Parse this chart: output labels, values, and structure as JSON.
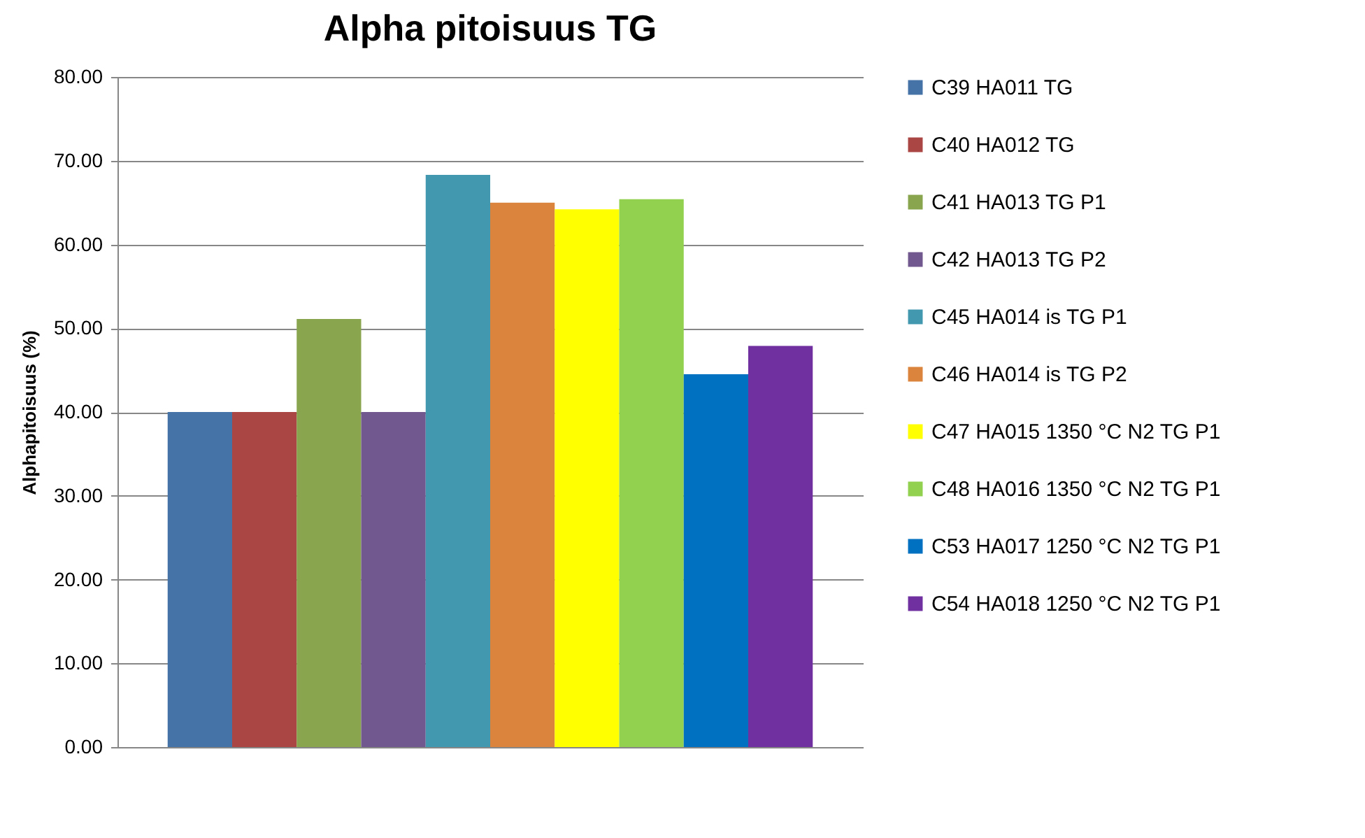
{
  "chart_data": {
    "type": "bar",
    "title": "Alpha pitoisuus TG",
    "ylabel": "Alphapitoisuus (%)",
    "categories": [
      null
    ],
    "series": [
      {
        "name": "C39 HA011 TG",
        "color": "#4572a7",
        "values": [
          40.0
        ]
      },
      {
        "name": "C40 HA012 TG",
        "color": "#aa4643",
        "values": [
          40.0
        ]
      },
      {
        "name": "C41 HA013 TG P1",
        "color": "#89a54e",
        "values": [
          51.1
        ]
      },
      {
        "name": "C42 HA013 TG P2",
        "color": "#71588f",
        "values": [
          40.0
        ]
      },
      {
        "name": "C45 HA014 is TG P1",
        "color": "#4198af",
        "values": [
          68.3
        ]
      },
      {
        "name": "C46 HA014 is TG P2",
        "color": "#db843d",
        "values": [
          65.0
        ]
      },
      {
        "name": "C47 HA015 1350 °C N2 TG P1",
        "color": "#ffff00",
        "values": [
          64.2
        ]
      },
      {
        "name": "C48 HA016 1350 °C N2 TG P1",
        "color": "#92d050",
        "values": [
          65.4
        ]
      },
      {
        "name": "C53 HA017 1250 °C N2 TG P1",
        "color": "#0070c0",
        "values": [
          44.5
        ]
      },
      {
        "name": "C54 HA018 1250 °C N2 TG P1",
        "color": "#7030a0",
        "values": [
          47.9
        ]
      }
    ],
    "ylim": [
      0,
      80
    ],
    "yticks": [
      {
        "value": 0,
        "label": "0.00"
      },
      {
        "value": 10,
        "label": "10.00"
      },
      {
        "value": 20,
        "label": "20.00"
      },
      {
        "value": 30,
        "label": "30.00"
      },
      {
        "value": 40,
        "label": "40.00"
      },
      {
        "value": 50,
        "label": "50.00"
      },
      {
        "value": 60,
        "label": "60.00"
      },
      {
        "value": 70,
        "label": "70.00"
      },
      {
        "value": 80,
        "label": "80.00"
      }
    ],
    "grid": "y",
    "legend": "right",
    "tick_labels": "y"
  }
}
